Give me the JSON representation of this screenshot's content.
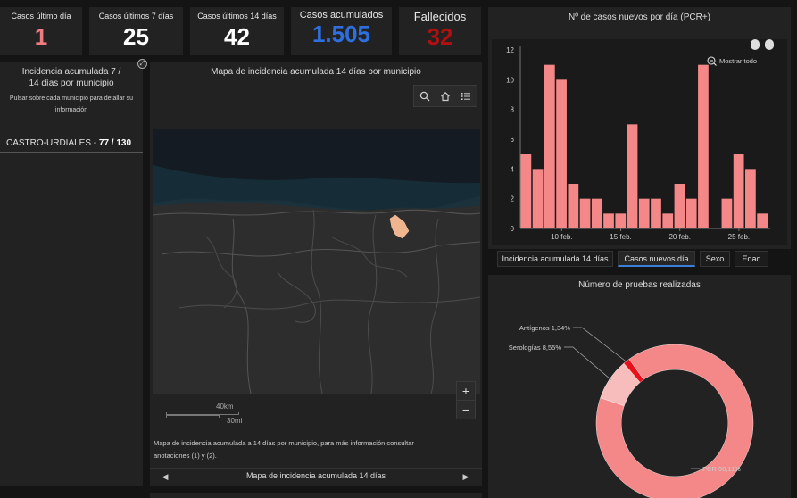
{
  "kpis": [
    {
      "label": "Casos último día",
      "value": "1",
      "color": "#f07c82"
    },
    {
      "label": "Casos últimos 7 días",
      "value": "25",
      "color": "#ffffff"
    },
    {
      "label": "Casos últimos 14 días",
      "value": "42",
      "color": "#ffffff"
    },
    {
      "label": "Casos acumulados",
      "value": "1.505",
      "color": "#2e6fe0"
    },
    {
      "label": "Fallecidos",
      "value": "32",
      "color": "#b01010"
    }
  ],
  "left_panel": {
    "title": "Incidencia acumulada 7 / 14 días por municipio",
    "subtitle": "Pulsar sobre cada municipio para detallar su información",
    "municipality_name": "CASTRO-URDIALES",
    "separator": " - ",
    "municipality_values": "77 / 130"
  },
  "map": {
    "title": "Mapa de incidencia acumulada 14 días por municipio",
    "scale_km": "40km",
    "scale_mi": "30mi",
    "zoom_in": "+",
    "zoom_out": "−",
    "note": "Mapa de incidencia acumulada a 14 días por municipio, para más información consultar anotaciones (1) y (2).",
    "footer_title": "Mapa de incidencia acumulada 14 días"
  },
  "bar_chart": {
    "title": "Nº de casos nuevos por día (PCR+)",
    "show_all_label": "Mostrar todo"
  },
  "tabs": [
    {
      "label": "Incidencia acumulada 14 días",
      "active": false
    },
    {
      "label": "Casos nuevos día",
      "active": true
    },
    {
      "label": "Sexo",
      "active": false
    },
    {
      "label": "Edad",
      "active": false
    }
  ],
  "donut": {
    "title": "Número de pruebas realizadas"
  },
  "chart_data": [
    {
      "type": "bar",
      "title": "Nº de casos nuevos por día (PCR+)",
      "x_tick_labels": [
        "10 feb.",
        "15 feb.",
        "20 feb.",
        "25 feb."
      ],
      "values": [
        5,
        4,
        11,
        10,
        3,
        2,
        2,
        1,
        1,
        7,
        2,
        2,
        1,
        3,
        2,
        11,
        0,
        2,
        5,
        4,
        1
      ],
      "ylim": [
        0,
        12
      ],
      "yticks": [
        0,
        2,
        4,
        6,
        8,
        10,
        12
      ],
      "color": "#f48787",
      "grid": false
    },
    {
      "type": "pie",
      "title": "Número de pruebas realizadas",
      "slices": [
        {
          "label": "PCR 90,11%",
          "value": 90.11,
          "color": "#f48787"
        },
        {
          "label": "Serologías 8,55%",
          "value": 8.55,
          "color": "#f7bcbc"
        },
        {
          "label": "Antígenos 1,34%",
          "value": 1.34,
          "color": "#e8101a"
        }
      ]
    }
  ]
}
